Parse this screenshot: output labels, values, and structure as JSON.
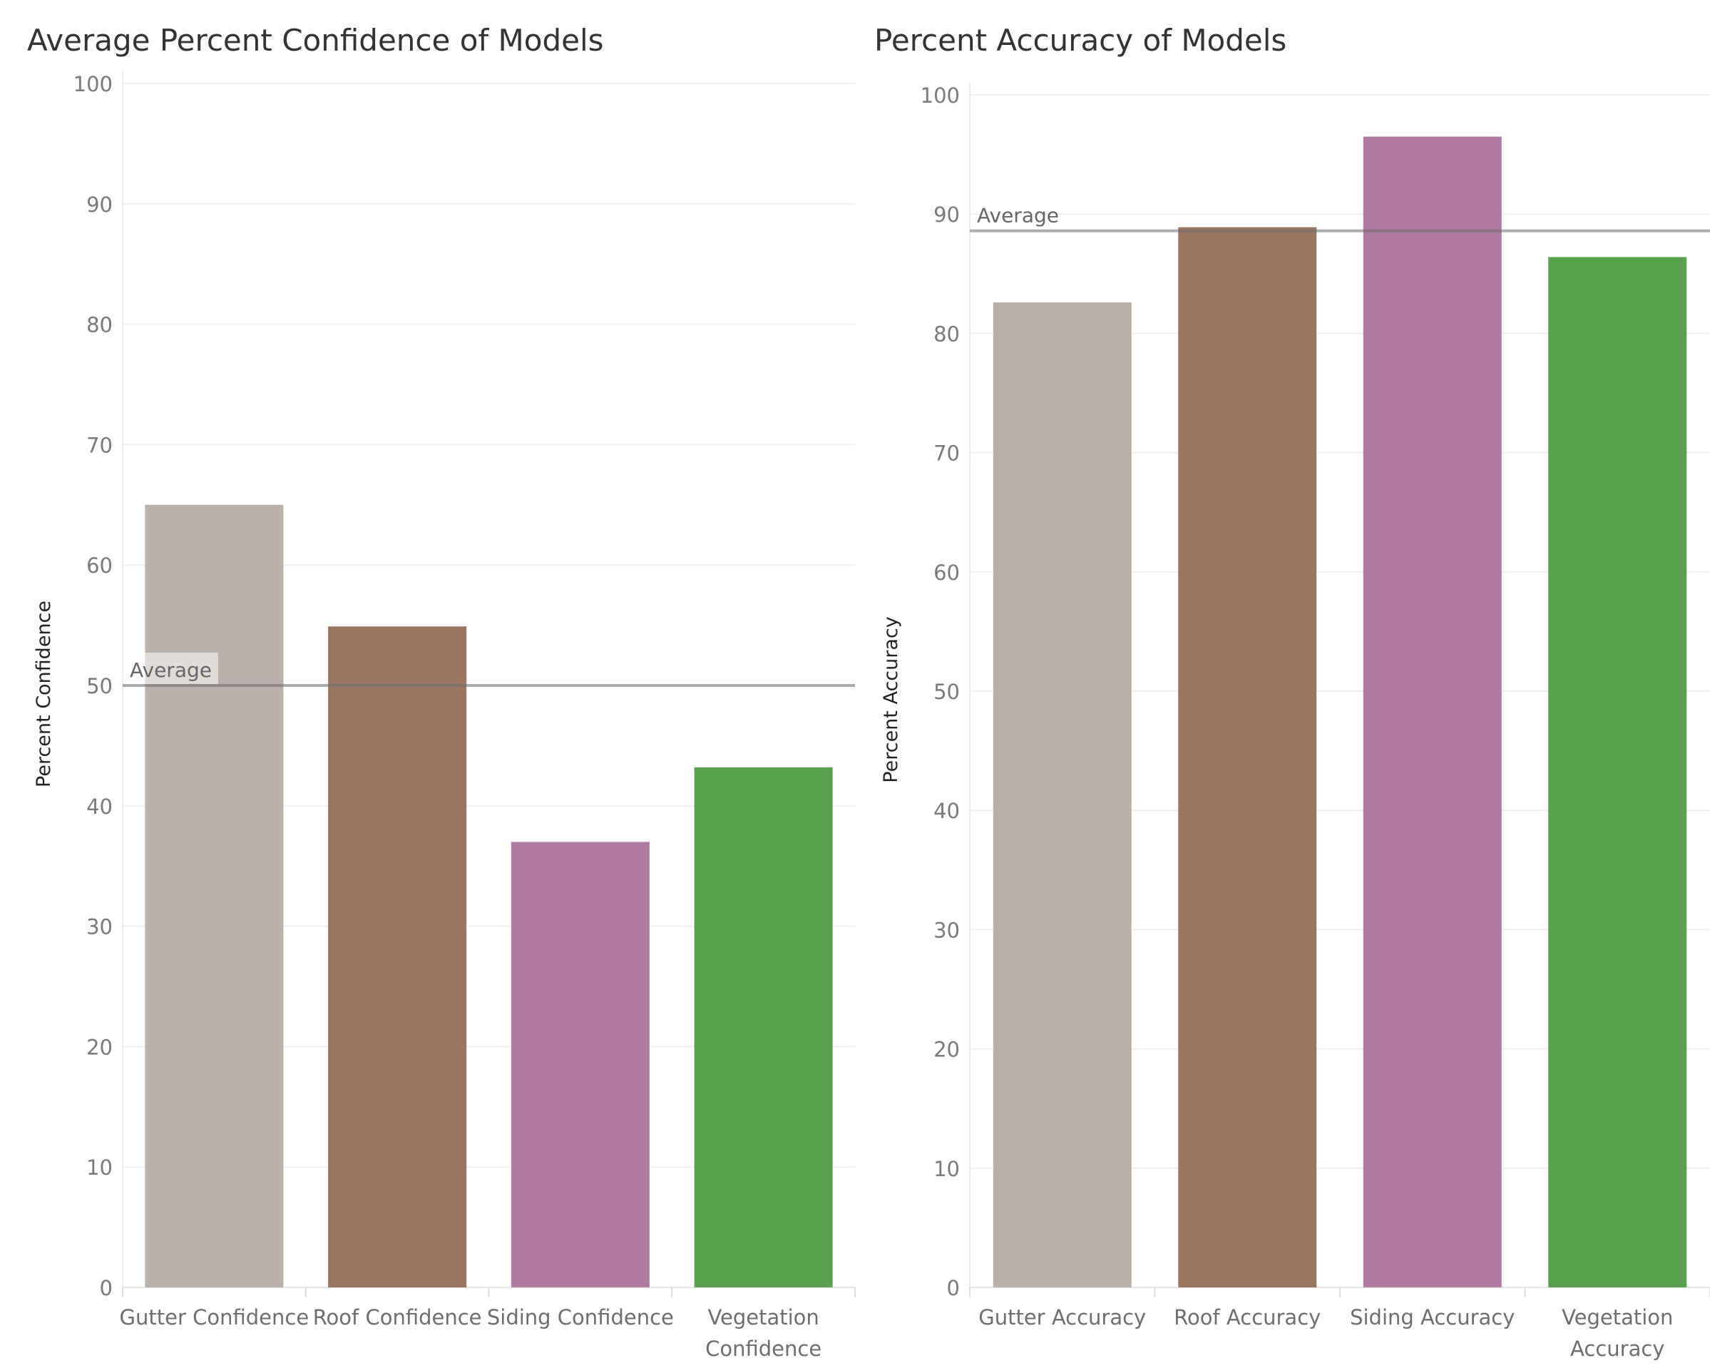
{
  "chart_data": [
    {
      "type": "bar",
      "title": "Average Percent Confidence of Models",
      "xlabel": "",
      "ylabel": "Percent Confidence",
      "ylim": [
        0,
        100
      ],
      "yticks": [
        0,
        10,
        20,
        30,
        40,
        50,
        60,
        70,
        80,
        90,
        100
      ],
      "grid": true,
      "categories": [
        [
          "Gutter Confidence"
        ],
        [
          "Roof Confidence"
        ],
        [
          "Siding Confidence"
        ],
        [
          "Vegetation",
          "Confidence"
        ]
      ],
      "values": [
        65.0,
        54.9,
        37.0,
        43.2
      ],
      "colors": [
        "#bab0ab",
        "#9c755f",
        "#b07aa1",
        "#59a14f"
      ],
      "reference_line": {
        "label": "Average",
        "value": 50.0
      }
    },
    {
      "type": "bar",
      "title": "Percent Accuracy of Models",
      "xlabel": "",
      "ylabel": "Percent Accuracy",
      "ylim": [
        0,
        100
      ],
      "yticks": [
        0,
        10,
        20,
        30,
        40,
        50,
        60,
        70,
        80,
        90,
        100
      ],
      "grid": true,
      "categories": [
        [
          "Gutter Accuracy"
        ],
        [
          "Roof Accuracy"
        ],
        [
          "Siding Accuracy"
        ],
        [
          "Vegetation",
          "Accuracy"
        ]
      ],
      "values": [
        82.6,
        88.9,
        96.5,
        86.4
      ],
      "colors": [
        "#bab0ab",
        "#9c755f",
        "#b07aa1",
        "#59a14f"
      ],
      "reference_line": {
        "label": "Average",
        "value": 88.6
      }
    }
  ]
}
